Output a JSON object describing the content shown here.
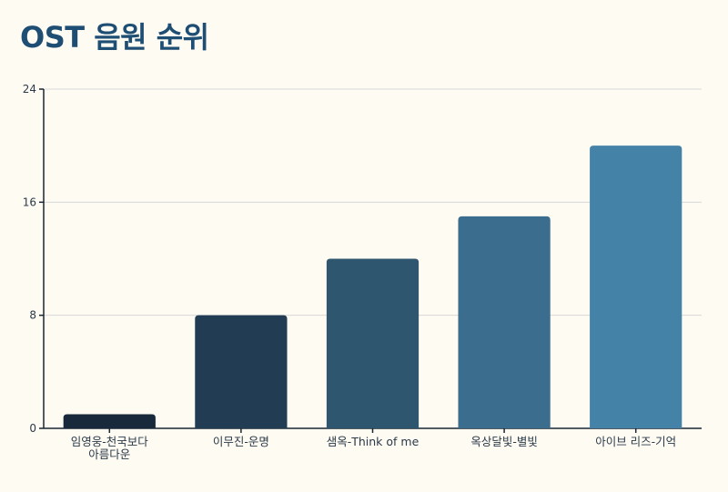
{
  "chart_data": {
    "type": "bar",
    "title": "OST 음원 순위",
    "categories": [
      [
        "임영웅-천국보다",
        "아름다운"
      ],
      [
        "이무진-운명"
      ],
      [
        "샘옥-Think of me"
      ],
      [
        "옥상달빛-별빛"
      ],
      [
        "아이브 리즈-기억"
      ]
    ],
    "values": [
      1,
      8,
      12,
      15,
      20
    ],
    "ylim": [
      0,
      24
    ],
    "yticks": [
      0,
      8,
      16,
      24
    ],
    "grid": true,
    "colors": [
      "#17293a",
      "#223d53",
      "#2e566f",
      "#3a6d8e",
      "#4582a8"
    ]
  }
}
